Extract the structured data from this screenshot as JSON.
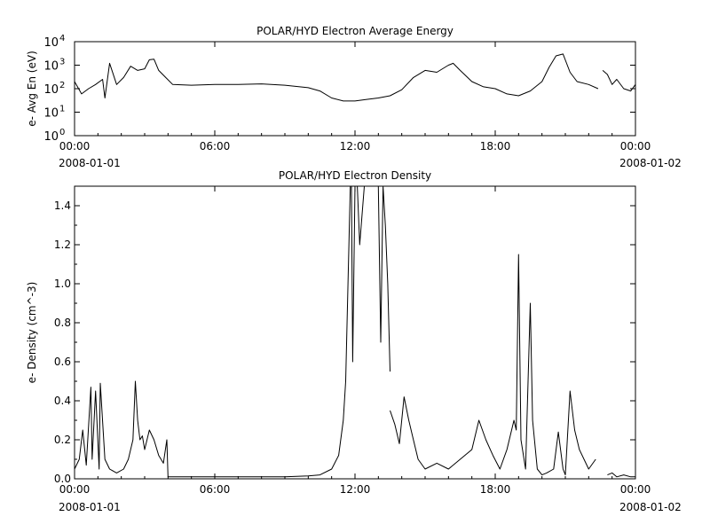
{
  "chart_data": [
    {
      "type": "line",
      "title": "POLAR/HYD  Electron Average Energy",
      "ylabel": "e- Avg En (eV)",
      "yscale": "log",
      "ylim": [
        1,
        10000
      ],
      "yticks": [
        1,
        10,
        100,
        1000,
        10000
      ],
      "ytick_labels": [
        {
          "base": "10",
          "exp": "0"
        },
        {
          "base": "10",
          "exp": "1"
        },
        {
          "base": "10",
          "exp": "2"
        },
        {
          "base": "10",
          "exp": "3"
        },
        {
          "base": "10",
          "exp": "4"
        }
      ],
      "xticks": [
        "00:00",
        "06:00",
        "12:00",
        "18:00",
        "00:00"
      ],
      "xdate_start": "2008-01-01",
      "xdate_end": "2008-01-02",
      "series": [
        {
          "x_hours": [
            0,
            0.3,
            0.6,
            0.9,
            1.2,
            1.3,
            1.5,
            1.8,
            2.1,
            2.4,
            2.7,
            3.0,
            3.2,
            3.4,
            3.6,
            3.9,
            4.2,
            5,
            6,
            7,
            8,
            9,
            10,
            10.5,
            11.0,
            11.5,
            12,
            12.5,
            13,
            13.5,
            14.0,
            14.5,
            15.0,
            15.5,
            16.0,
            16.2,
            16.5,
            17.0,
            17.5,
            18.0,
            18.5,
            19.0,
            19.5,
            20.0,
            20.3,
            20.6,
            20.9,
            21.2,
            21.5,
            22.0,
            22.4
          ],
          "y": [
            200,
            60,
            100,
            150,
            250,
            40,
            1200,
            150,
            300,
            900,
            600,
            700,
            1700,
            1800,
            600,
            300,
            150,
            140,
            150,
            150,
            160,
            140,
            110,
            80,
            40,
            30,
            30,
            35,
            40,
            50,
            90,
            300,
            600,
            500,
            1000,
            1200,
            600,
            200,
            120,
            100,
            60,
            50,
            80,
            200,
            800,
            2500,
            3000,
            500,
            200,
            150,
            100
          ]
        },
        {
          "x_hours": [
            22.6,
            22.8,
            23.0,
            23.2,
            23.5,
            23.8,
            24.0
          ],
          "y": [
            600,
            400,
            150,
            250,
            100,
            80,
            150
          ]
        }
      ]
    },
    {
      "type": "line",
      "title": "POLAR/HYD  Electron Density",
      "ylabel": "e- Density (cm^-3)",
      "ylim": [
        0,
        1.5
      ],
      "yticks": [
        0.0,
        0.2,
        0.4,
        0.6,
        0.8,
        1.0,
        1.2,
        1.4
      ],
      "ytick_labels": [
        "0.0",
        "0.2",
        "0.4",
        "0.6",
        "0.8",
        "1.0",
        "1.2",
        "1.4"
      ],
      "xticks": [
        "00:00",
        "06:00",
        "12:00",
        "18:00",
        "00:00"
      ],
      "xdate_start": "2008-01-01",
      "xdate_end": "2008-01-02",
      "series": [
        {
          "x_hours": [
            0,
            0.2,
            0.35,
            0.5,
            0.7,
            0.75,
            0.9,
            1.05,
            1.1,
            1.3,
            1.5,
            1.8,
            2.1,
            2.3,
            2.5,
            2.6,
            2.7,
            2.8,
            2.9,
            3.0,
            3.2,
            3.4,
            3.6,
            3.8,
            3.95,
            4.0,
            5,
            6,
            7,
            8,
            9,
            10,
            10.5,
            11.0,
            11.3,
            11.5,
            11.6,
            11.7,
            11.8,
            11.85,
            11.9,
            12.0,
            12.05,
            12.1,
            12.2,
            12.4,
            12.6,
            12.9,
            13.0,
            13.1,
            13.2,
            13.3,
            13.4,
            13.5
          ],
          "y": [
            0.05,
            0.1,
            0.25,
            0.07,
            0.47,
            0.1,
            0.45,
            0.05,
            0.49,
            0.1,
            0.05,
            0.03,
            0.05,
            0.1,
            0.2,
            0.5,
            0.3,
            0.2,
            0.22,
            0.15,
            0.25,
            0.2,
            0.12,
            0.08,
            0.2,
            0.01,
            0.01,
            0.01,
            0.01,
            0.01,
            0.01,
            0.015,
            0.02,
            0.05,
            0.12,
            0.3,
            0.5,
            1.0,
            1.5,
            1.5,
            0.6,
            1.5,
            1.5,
            1.5,
            1.2,
            1.5,
            1.5,
            1.5,
            1.5,
            0.7,
            1.5,
            1.3,
            1.0,
            0.55
          ]
        },
        {
          "x_hours": [
            13.5,
            13.7,
            13.9,
            14.1,
            14.3,
            14.5,
            14.7,
            15,
            15.5,
            16,
            16.5,
            17,
            17.3,
            17.6,
            17.9,
            18.2,
            18.5,
            18.8,
            18.9,
            19.0,
            19.1,
            19.3,
            19.5,
            19.6,
            19.8,
            20.0,
            20.2,
            20.5,
            20.7,
            20.9,
            21.0,
            21.2,
            21.4,
            21.6,
            22.0,
            22.3
          ],
          "y": [
            0.35,
            0.28,
            0.18,
            0.42,
            0.3,
            0.2,
            0.1,
            0.05,
            0.08,
            0.05,
            0.1,
            0.15,
            0.3,
            0.2,
            0.12,
            0.05,
            0.15,
            0.3,
            0.25,
            1.15,
            0.2,
            0.05,
            0.9,
            0.3,
            0.05,
            0.02,
            0.03,
            0.05,
            0.24,
            0.05,
            0.02,
            0.45,
            0.25,
            0.15,
            0.05,
            0.1
          ]
        },
        {
          "x_hours": [
            22.8,
            23.0,
            23.2,
            23.5,
            23.8,
            24.0
          ],
          "y": [
            0.02,
            0.03,
            0.01,
            0.02,
            0.01,
            0.01
          ]
        }
      ]
    }
  ]
}
